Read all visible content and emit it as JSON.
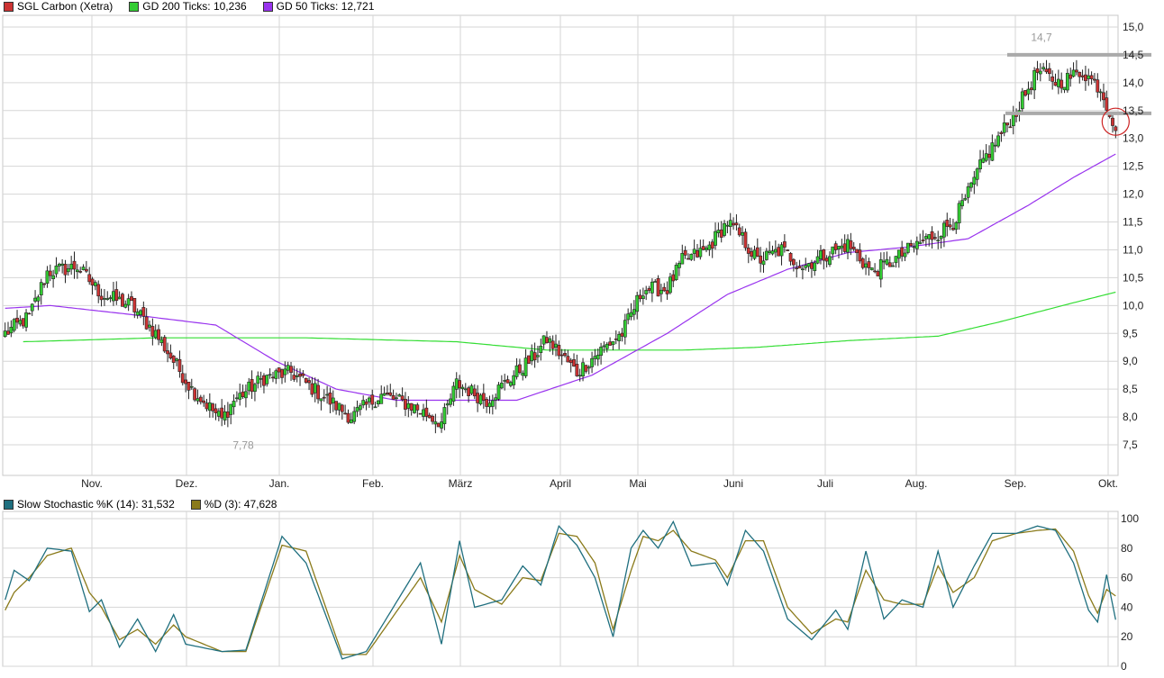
{
  "colors": {
    "bg": "#ffffff",
    "grid": "#d6d6d6",
    "up": "#33cc33",
    "down": "#cc3333",
    "gd200": "#33dd33",
    "gd50": "#9933ee",
    "stochK": "#1f6f7f",
    "stochD": "#8a7a1a",
    "resistance": "#aaaaaa",
    "marker": "#cc2222"
  },
  "legend_top": [
    {
      "label": "SGL Carbon (Xetra)",
      "color": "#cc3333"
    },
    {
      "label": "GD 200 Ticks: 10,236",
      "color": "#33cc33"
    },
    {
      "label": "GD 50 Ticks: 12,721",
      "color": "#9933ee"
    }
  ],
  "legend_bottom": [
    {
      "label": "Slow Stochastic %K (14): 31,532",
      "color": "#1f6f7f"
    },
    {
      "label": "%D (3): 47,628",
      "color": "#8a7a1a"
    }
  ],
  "chart_data": [
    {
      "type": "candlestick",
      "title": "SGL Carbon (Xetra)",
      "x_ticks": [
        "Nov.",
        "Dez.",
        "Jan.",
        "Feb.",
        "März",
        "April",
        "Mai",
        "Juni",
        "Juli",
        "Aug.",
        "Sep.",
        "Okt."
      ],
      "y_ticks": [
        "7,5",
        "8,0",
        "8,5",
        "9,0",
        "9,5",
        "10,0",
        "10,5",
        "11,0",
        "11,5",
        "12,0",
        "12,5",
        "13,0",
        "13,5",
        "14,0",
        "14,5",
        "15,0"
      ],
      "y_tick_values": [
        7.5,
        8.0,
        8.5,
        9.0,
        9.5,
        10.0,
        10.5,
        11.0,
        11.5,
        12.0,
        12.5,
        13.0,
        13.5,
        14.0,
        14.5,
        15.0
      ],
      "ylim": [
        7.1,
        15.3
      ],
      "annotations": [
        {
          "label": "7,78",
          "value": 7.78
        },
        {
          "label": "14,7",
          "value": 14.7
        }
      ],
      "resistance_levels": [
        14.5,
        13.45
      ],
      "close_anchors": [
        [
          0,
          9.5
        ],
        [
          8,
          9.8
        ],
        [
          14,
          10.6
        ],
        [
          24,
          10.7
        ],
        [
          32,
          10.2
        ],
        [
          42,
          10.0
        ],
        [
          50,
          9.5
        ],
        [
          56,
          9.0
        ],
        [
          62,
          8.5
        ],
        [
          72,
          7.95
        ],
        [
          76,
          8.3
        ],
        [
          86,
          8.7
        ],
        [
          95,
          8.8
        ],
        [
          105,
          8.4
        ],
        [
          115,
          8.0
        ],
        [
          125,
          8.4
        ],
        [
          135,
          8.2
        ],
        [
          145,
          7.9
        ],
        [
          150,
          8.6
        ],
        [
          160,
          8.3
        ],
        [
          168,
          8.7
        ],
        [
          176,
          9.1
        ],
        [
          180,
          9.4
        ],
        [
          190,
          8.8
        ],
        [
          198,
          9.2
        ],
        [
          205,
          9.5
        ],
        [
          212,
          10.3
        ],
        [
          220,
          10.3
        ],
        [
          225,
          10.8
        ],
        [
          233,
          11.0
        ],
        [
          240,
          11.5
        ],
        [
          245,
          11.2
        ],
        [
          250,
          10.8
        ],
        [
          258,
          11.0
        ],
        [
          265,
          10.7
        ],
        [
          272,
          10.9
        ],
        [
          280,
          11.1
        ],
        [
          288,
          10.6
        ],
        [
          295,
          10.8
        ],
        [
          303,
          11.1
        ],
        [
          310,
          11.3
        ],
        [
          315,
          11.5
        ],
        [
          320,
          12.0
        ],
        [
          325,
          12.6
        ],
        [
          330,
          13.0
        ],
        [
          336,
          13.5
        ],
        [
          343,
          14.2
        ],
        [
          350,
          14.0
        ],
        [
          358,
          14.2
        ],
        [
          364,
          13.9
        ],
        [
          369,
          13.2
        ]
      ],
      "series": [
        {
          "name": "GD 200 Ticks",
          "anchors": [
            [
              6,
              9.35
            ],
            [
              50,
              9.42
            ],
            [
              100,
              9.42
            ],
            [
              150,
              9.35
            ],
            [
              180,
              9.2
            ],
            [
              225,
              9.2
            ],
            [
              250,
              9.25
            ],
            [
              280,
              9.37
            ],
            [
              310,
              9.45
            ],
            [
              330,
              9.7
            ],
            [
              355,
              10.05
            ],
            [
              369,
              10.24
            ]
          ]
        },
        {
          "name": "GD 50 Ticks",
          "anchors": [
            [
              0,
              9.95
            ],
            [
              15,
              10.0
            ],
            [
              40,
              9.85
            ],
            [
              70,
              9.65
            ],
            [
              90,
              9.0
            ],
            [
              110,
              8.5
            ],
            [
              130,
              8.3
            ],
            [
              170,
              8.3
            ],
            [
              195,
              8.75
            ],
            [
              220,
              9.5
            ],
            [
              240,
              10.2
            ],
            [
              260,
              10.65
            ],
            [
              280,
              10.95
            ],
            [
              300,
              11.05
            ],
            [
              320,
              11.2
            ],
            [
              340,
              11.8
            ],
            [
              355,
              12.3
            ],
            [
              369,
              12.72
            ]
          ]
        }
      ]
    },
    {
      "type": "line",
      "title": "Slow Stochastic",
      "y_ticks": [
        "0",
        "20",
        "40",
        "60",
        "80",
        "100"
      ],
      "y_tick_values": [
        0,
        20,
        40,
        60,
        80,
        100
      ],
      "ylim": [
        0,
        100
      ],
      "series": [
        {
          "name": "Slow Stochastic %K (14)",
          "anchors": [
            [
              0,
              45
            ],
            [
              3,
              65
            ],
            [
              8,
              58
            ],
            [
              14,
              80
            ],
            [
              22,
              78
            ],
            [
              28,
              37
            ],
            [
              32,
              45
            ],
            [
              38,
              13
            ],
            [
              44,
              32
            ],
            [
              50,
              10
            ],
            [
              56,
              35
            ],
            [
              60,
              15
            ],
            [
              72,
              10
            ],
            [
              80,
              11
            ],
            [
              92,
              88
            ],
            [
              100,
              70
            ],
            [
              112,
              5
            ],
            [
              120,
              10
            ],
            [
              138,
              70
            ],
            [
              145,
              15
            ],
            [
              151,
              85
            ],
            [
              156,
              40
            ],
            [
              165,
              45
            ],
            [
              172,
              68
            ],
            [
              178,
              55
            ],
            [
              184,
              95
            ],
            [
              190,
              82
            ],
            [
              196,
              60
            ],
            [
              202,
              20
            ],
            [
              208,
              80
            ],
            [
              212,
              92
            ],
            [
              217,
              80
            ],
            [
              222,
              98
            ],
            [
              228,
              68
            ],
            [
              236,
              70
            ],
            [
              240,
              55
            ],
            [
              246,
              92
            ],
            [
              252,
              78
            ],
            [
              260,
              32
            ],
            [
              268,
              18
            ],
            [
              276,
              38
            ],
            [
              280,
              25
            ],
            [
              286,
              78
            ],
            [
              292,
              32
            ],
            [
              298,
              45
            ],
            [
              305,
              40
            ],
            [
              310,
              78
            ],
            [
              315,
              40
            ],
            [
              322,
              68
            ],
            [
              328,
              90
            ],
            [
              336,
              90
            ],
            [
              343,
              95
            ],
            [
              349,
              92
            ],
            [
              355,
              70
            ],
            [
              360,
              38
            ],
            [
              363,
              30
            ],
            [
              366,
              62
            ],
            [
              369,
              31.5
            ]
          ]
        },
        {
          "name": "%D (3)",
          "anchors": [
            [
              0,
              38
            ],
            [
              3,
              50
            ],
            [
              8,
              60
            ],
            [
              14,
              75
            ],
            [
              22,
              80
            ],
            [
              28,
              50
            ],
            [
              32,
              40
            ],
            [
              38,
              18
            ],
            [
              44,
              25
            ],
            [
              50,
              15
            ],
            [
              56,
              28
            ],
            [
              60,
              20
            ],
            [
              72,
              10
            ],
            [
              80,
              10
            ],
            [
              92,
              82
            ],
            [
              100,
              78
            ],
            [
              112,
              8
            ],
            [
              120,
              8
            ],
            [
              138,
              60
            ],
            [
              145,
              30
            ],
            [
              151,
              75
            ],
            [
              156,
              52
            ],
            [
              165,
              42
            ],
            [
              172,
              60
            ],
            [
              178,
              58
            ],
            [
              184,
              90
            ],
            [
              190,
              88
            ],
            [
              196,
              70
            ],
            [
              202,
              25
            ],
            [
              208,
              65
            ],
            [
              212,
              88
            ],
            [
              217,
              85
            ],
            [
              222,
              92
            ],
            [
              228,
              78
            ],
            [
              236,
              72
            ],
            [
              240,
              60
            ],
            [
              246,
              85
            ],
            [
              252,
              85
            ],
            [
              260,
              40
            ],
            [
              268,
              22
            ],
            [
              276,
              32
            ],
            [
              280,
              30
            ],
            [
              286,
              65
            ],
            [
              292,
              45
            ],
            [
              298,
              42
            ],
            [
              305,
              42
            ],
            [
              310,
              68
            ],
            [
              315,
              50
            ],
            [
              322,
              60
            ],
            [
              328,
              85
            ],
            [
              336,
              90
            ],
            [
              343,
              92
            ],
            [
              349,
              93
            ],
            [
              355,
              78
            ],
            [
              360,
              48
            ],
            [
              363,
              36
            ],
            [
              366,
              52
            ],
            [
              369,
              47.6
            ]
          ]
        }
      ]
    }
  ]
}
